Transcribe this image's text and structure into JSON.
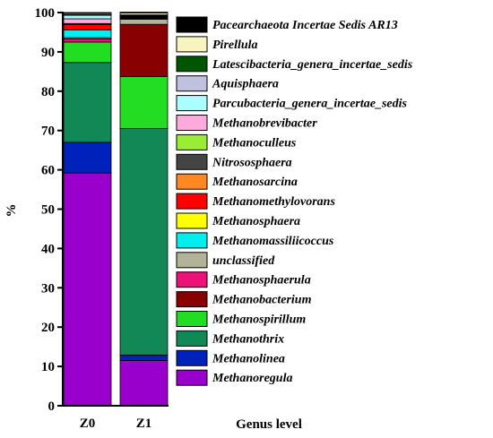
{
  "chart_data": {
    "type": "bar",
    "stacked": true,
    "categories": [
      "Z0",
      "Z1"
    ],
    "xlabel": "Genus level",
    "ylabel": "%",
    "ylim": [
      0,
      100
    ],
    "yticks": [
      0,
      10,
      20,
      30,
      40,
      50,
      60,
      70,
      80,
      90,
      100
    ],
    "legend_position": "right",
    "series": [
      {
        "name": "Methanoregula",
        "color": "#9900cc",
        "values": [
          59.2,
          11.5
        ]
      },
      {
        "name": "Methanolinea",
        "color": "#0022bb",
        "values": [
          7.8,
          1.4
        ]
      },
      {
        "name": "Methanothrix",
        "color": "#118855",
        "values": [
          20.3,
          57.6
        ]
      },
      {
        "name": "Methanospirillum",
        "color": "#22dd22",
        "values": [
          5.2,
          13.2
        ]
      },
      {
        "name": "Methanobacterium",
        "color": "#880000",
        "values": [
          0.0,
          13.3
        ]
      },
      {
        "name": "Methanosphaerula",
        "color": "#ee1177",
        "values": [
          0.8,
          0.0
        ]
      },
      {
        "name": "unclassified",
        "color": "#b3b399",
        "values": [
          0.3,
          1.3
        ]
      },
      {
        "name": "Methanomassiliicoccus",
        "color": "#00eeee",
        "values": [
          2.0,
          0.2
        ]
      },
      {
        "name": "Methanosphaera",
        "color": "#ffff00",
        "values": [
          0.0,
          0.0
        ]
      },
      {
        "name": "Methanomethylovorans",
        "color": "#ff0000",
        "values": [
          1.3,
          0.1
        ]
      },
      {
        "name": "Methanosarcina",
        "color": "#ff8822",
        "values": [
          0.1,
          0.1
        ]
      },
      {
        "name": "Nitrososphaera",
        "color": "#444444",
        "values": [
          0.1,
          0.1
        ]
      },
      {
        "name": "Methanoculleus",
        "color": "#99ee33",
        "values": [
          0.1,
          0.1
        ]
      },
      {
        "name": "Methanobrevibacter",
        "color": "#ffaadd",
        "values": [
          1.2,
          0.1
        ]
      },
      {
        "name": "Parcubacteria_genera_incertae_sedis",
        "color": "#aaffff",
        "values": [
          0.9,
          0.2
        ]
      },
      {
        "name": "Aquisphaera",
        "color": "#c0c0e0",
        "values": [
          0.1,
          0.1
        ]
      },
      {
        "name": "Latescibacteria_genera_incertae_sedis",
        "color": "#005500",
        "values": [
          0.1,
          0.1
        ]
      },
      {
        "name": "Pirellula",
        "color": "#f8f4c0",
        "values": [
          0.3,
          0.5
        ]
      },
      {
        "name": "Pacearchaeota Incertae Sedis AR13",
        "color": "#000000",
        "values": [
          0.2,
          0.2
        ]
      }
    ]
  }
}
